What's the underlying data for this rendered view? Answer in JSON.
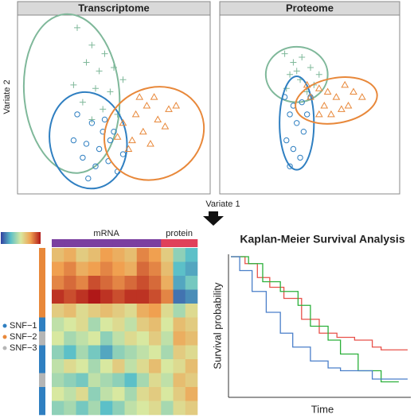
{
  "chart_data": [
    {
      "type": "scatter",
      "title": "Transcriptome",
      "x_label": "Variate 1",
      "y_label": "Variate 2",
      "xlim": [
        0,
        100
      ],
      "ylim": [
        0,
        100
      ],
      "series": [
        {
          "color": "#7fb89a",
          "marker": "plus",
          "x": [
            30,
            38,
            45,
            35,
            42,
            50,
            28,
            40,
            48,
            55,
            33,
            44,
            52,
            38
          ],
          "y": [
            95,
            85,
            80,
            75,
            70,
            72,
            62,
            60,
            58,
            65,
            52,
            48,
            45,
            42
          ],
          "ellipse": {
            "cx": 27,
            "cy": 57,
            "rx": 26,
            "ry": 46,
            "angle": -5
          }
        },
        {
          "color": "#2f7fc1",
          "marker": "circle",
          "x": [
            30,
            38,
            45,
            50,
            28,
            35,
            42,
            48,
            33,
            40,
            47,
            55,
            36,
            44,
            52
          ],
          "y": [
            45,
            40,
            42,
            35,
            30,
            28,
            25,
            30,
            20,
            15,
            18,
            22,
            8,
            35,
            12
          ],
          "ellipse": {
            "cx": 36,
            "cy": 30,
            "rx": 21,
            "ry": 28,
            "angle": -10
          }
        },
        {
          "color": "#e8883a",
          "marker": "triangle",
          "x": [
            55,
            62,
            68,
            72,
            60,
            66,
            74,
            80,
            58,
            70,
            78,
            64,
            84,
            52
          ],
          "y": [
            40,
            45,
            50,
            55,
            30,
            35,
            42,
            48,
            25,
            28,
            38,
            55,
            50,
            32
          ],
          "ellipse": {
            "cx": 72,
            "cy": 34,
            "rx": 28,
            "ry": 26,
            "angle": -30
          }
        }
      ]
    },
    {
      "type": "scatter",
      "title": "Proteome",
      "xlim": [
        0,
        100
      ],
      "ylim": [
        0,
        100
      ],
      "series": [
        {
          "color": "#7fb89a",
          "marker": "plus",
          "x": [
            35,
            40,
            45,
            50,
            38,
            44,
            52,
            36,
            48,
            42,
            55
          ],
          "y": [
            80,
            75,
            78,
            72,
            68,
            65,
            62,
            60,
            58,
            70,
            68
          ],
          "ellipse": {
            "cx": 42,
            "cy": 68,
            "rx": 18,
            "ry": 16,
            "angle": 0
          }
        },
        {
          "color": "#2f7fc1",
          "marker": "circle",
          "x": [
            35,
            40,
            45,
            38,
            42,
            46,
            36,
            40,
            44,
            48,
            50,
            38
          ],
          "y": [
            55,
            50,
            52,
            45,
            40,
            35,
            30,
            25,
            20,
            45,
            55,
            15
          ],
          "ellipse": {
            "cx": 42,
            "cy": 40,
            "rx": 10,
            "ry": 27,
            "angle": 0
          }
        },
        {
          "color": "#e8883a",
          "marker": "triangle",
          "x": [
            50,
            55,
            60,
            65,
            70,
            75,
            58,
            62,
            68,
            72,
            80,
            55,
            48
          ],
          "y": [
            55,
            60,
            58,
            55,
            62,
            58,
            50,
            45,
            48,
            50,
            55,
            45,
            62
          ],
          "ellipse": {
            "cx": 65,
            "cy": 53,
            "rx": 24,
            "ry": 13,
            "angle": -10
          }
        }
      ]
    },
    {
      "type": "heatmap",
      "column_labels": [
        "mRNA",
        "protein"
      ],
      "column_groups": [
        0,
        0,
        0,
        0,
        0,
        0,
        0,
        0,
        0,
        1,
        1,
        1
      ],
      "row_groups": [
        1,
        1,
        1,
        1,
        1,
        0,
        2,
        0,
        0,
        2,
        0,
        0
      ],
      "legend": [
        {
          "name": "SNF−1",
          "color": "#2f7fc1"
        },
        {
          "name": "SNF−2",
          "color": "#e8883a"
        },
        {
          "name": "SNF−3",
          "color": "#b5b5b5"
        }
      ],
      "column_colors": [
        "#7b3fa0",
        "#e0405a"
      ],
      "clim": [
        -1,
        1
      ],
      "colormap": [
        "#3040a0",
        "#5cc0c8",
        "#d8e8a0",
        "#f0a050",
        "#b01818"
      ],
      "values": [
        [
          0.3,
          0.4,
          0.2,
          0.3,
          0.5,
          0.4,
          0.3,
          0.6,
          0.5,
          0.2,
          -0.3,
          -0.5
        ],
        [
          0.5,
          0.6,
          0.4,
          0.5,
          0.6,
          0.5,
          0.4,
          0.7,
          0.6,
          0.3,
          -0.5,
          -0.6
        ],
        [
          0.6,
          0.7,
          0.6,
          0.8,
          0.7,
          0.6,
          0.7,
          0.8,
          0.7,
          0.4,
          -0.6,
          -0.4
        ],
        [
          0.9,
          0.8,
          0.9,
          1.0,
          0.9,
          0.8,
          0.9,
          0.9,
          0.8,
          0.6,
          -0.8,
          -0.7
        ],
        [
          0.2,
          0.3,
          0.1,
          0.2,
          0.3,
          0.2,
          0.1,
          0.4,
          0.5,
          0.1,
          -0.2,
          0.1
        ],
        [
          -0.1,
          0,
          0.1,
          -0.2,
          0,
          0.1,
          -0.1,
          0.2,
          0.3,
          0,
          0.3,
          0.2
        ],
        [
          0,
          -0.2,
          -0.1,
          0,
          -0.3,
          -0.1,
          0.1,
          0,
          0.2,
          -0.1,
          0.4,
          0.3
        ],
        [
          -0.3,
          -0.5,
          -0.2,
          -0.4,
          -0.6,
          -0.3,
          -0.2,
          -0.1,
          0,
          -0.2,
          0.2,
          0.1
        ],
        [
          -0.1,
          0.1,
          0,
          -0.2,
          0,
          0.2,
          -0.1,
          0.1,
          0.3,
          0,
          0.1,
          0.3
        ],
        [
          -0.2,
          -0.3,
          -0.4,
          -0.1,
          -0.2,
          -0.3,
          -0.5,
          -0.2,
          0.1,
          -0.1,
          0.3,
          0.2
        ],
        [
          0,
          -0.1,
          0.1,
          -0.3,
          -0.1,
          0,
          -0.2,
          0.1,
          0.2,
          0,
          0.2,
          0.4
        ],
        [
          -0.3,
          -0.2,
          -0.4,
          -0.2,
          -0.5,
          -0.3,
          -0.1,
          0,
          0.1,
          -0.2,
          0.1,
          0.2
        ]
      ]
    },
    {
      "type": "step",
      "title": "Kaplan-Meier Survival Analysis",
      "x_label": "Time",
      "y_label": "Survival probability",
      "xlim": [
        0,
        100
      ],
      "ylim": [
        0,
        1
      ],
      "series": [
        {
          "color": "#e8514a",
          "x": [
            0,
            8,
            15,
            22,
            30,
            40,
            50,
            60,
            70,
            80,
            85,
            100
          ],
          "y": [
            1,
            0.95,
            0.85,
            0.78,
            0.7,
            0.55,
            0.45,
            0.42,
            0.4,
            0.35,
            0.33,
            0.33
          ]
        },
        {
          "color": "#2bb03a",
          "x": [
            0,
            10,
            18,
            28,
            38,
            45,
            55,
            62,
            72,
            85,
            95
          ],
          "y": [
            1,
            0.95,
            0.82,
            0.75,
            0.65,
            0.5,
            0.4,
            0.3,
            0.18,
            0.1,
            0.1
          ]
        },
        {
          "color": "#4a7fc9",
          "x": [
            0,
            5,
            12,
            20,
            28,
            35,
            45,
            55,
            62,
            80,
            100
          ],
          "y": [
            1,
            0.9,
            0.75,
            0.6,
            0.45,
            0.35,
            0.25,
            0.2,
            0.18,
            0.12,
            0.12
          ]
        }
      ]
    }
  ]
}
